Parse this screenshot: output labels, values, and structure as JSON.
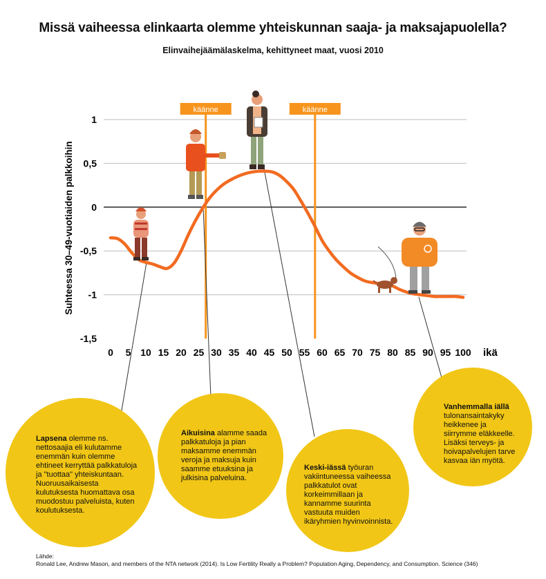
{
  "header": {
    "title": "Missä vaiheessa elinkaarta olemme yhteiskunnan saaja- ja maksajapuolella?",
    "subtitle": "Elinvaihejäämälaskelma, kehittyneet maat, vuosi 2010"
  },
  "chart_data": {
    "type": "line",
    "title": "Missä vaiheessa elinkaarta olemme yhteiskunnan saaja- ja maksajapuolella?",
    "subtitle": "Elinvaihejäämälaskelma, kehittyneet maat, vuosi 2010",
    "ylabel": "Suhteessa 30–49-vuotiaiden palkkoihin",
    "xlabel": "ikä",
    "xlim": [
      0,
      100
    ],
    "ylim": [
      -1.5,
      1
    ],
    "x_ticks": [
      "0",
      "5",
      "10",
      "15",
      "20",
      "25",
      "30",
      "35",
      "40",
      "45",
      "50",
      "55",
      "60",
      "65",
      "70",
      "75",
      "80",
      "85",
      "90",
      "95",
      "100"
    ],
    "y_ticks": [
      "1",
      "0,5",
      "0",
      "-0,5",
      "-1",
      "-1,5"
    ],
    "grid": true,
    "series": [
      {
        "name": "",
        "color": "#f26b21",
        "x": [
          0,
          2,
          4,
          6,
          8,
          10,
          12,
          14,
          16,
          18,
          20,
          22,
          24,
          26,
          28,
          30,
          32,
          34,
          36,
          38,
          40,
          42,
          44,
          46,
          48,
          50,
          52,
          54,
          56,
          58,
          60,
          62,
          64,
          66,
          68,
          70,
          72,
          74,
          76,
          78,
          80,
          82,
          84,
          86,
          88,
          90,
          92,
          94,
          96,
          98,
          100
        ],
        "y": [
          -0.35,
          -0.36,
          -0.42,
          -0.52,
          -0.6,
          -0.63,
          -0.65,
          -0.68,
          -0.7,
          -0.64,
          -0.5,
          -0.32,
          -0.16,
          -0.02,
          0.1,
          0.19,
          0.26,
          0.31,
          0.35,
          0.38,
          0.4,
          0.41,
          0.41,
          0.4,
          0.36,
          0.29,
          0.2,
          0.07,
          -0.07,
          -0.22,
          -0.38,
          -0.5,
          -0.6,
          -0.68,
          -0.75,
          -0.8,
          -0.84,
          -0.86,
          -0.87,
          -0.88,
          -0.9,
          -0.94,
          -0.97,
          -0.99,
          -1.0,
          -1.01,
          -1.02,
          -1.02,
          -1.02,
          -1.02,
          -1.03
        ]
      }
    ],
    "turning_points": [
      {
        "label": "käänne",
        "x": 27
      },
      {
        "label": "käänne",
        "x": 58
      }
    ]
  },
  "annotations": [
    {
      "bold": "Lapsena",
      "text": " olemme ns. nettosaajia eli kulutamme enemmän kuin olemme ehtineet kerryttää palkkatuloja ja \"tuottaa\" yhteiskuntaan. Nuoruusaikaisesta kulutuksesta huomattava osa muodostuu palveluista, kuten koulutuksesta."
    },
    {
      "bold": "Aikuisina",
      "text": " alamme saada palkkatuloja ja pian maksamme enemmän veroja ja maksuja kuin saamme etuuksina ja julkisina palveluina."
    },
    {
      "bold": "Keski-iässä",
      "text": " työuran vakiintuneessa vaiheessa palkkatulot ovat korkeimmillaan ja kannamme suurinta vastuuta muiden ikäryhmien hyvinvoinnista."
    },
    {
      "bold": "Vanhemmalla iällä",
      "text": " tulonansaintakyky heikkenee ja siirrymme eläkkeelle. Lisäksi terveys- ja hoivapalvelujen tarve kasvaa iän myötä."
    }
  ],
  "source": {
    "heading": "Lähde:",
    "text": "Ronald Lee, Andrew Mason, and members of the NTA network (2014). Is Low Fertility Really a Problem? Population Aging, Dependency, and Consumption. Science (346)"
  },
  "colors": {
    "curve": "#f26b21",
    "turning_line": "#f7941d",
    "bubble": "#f1c616",
    "grid": "#bdbdbd",
    "zero_line": "#555555"
  }
}
